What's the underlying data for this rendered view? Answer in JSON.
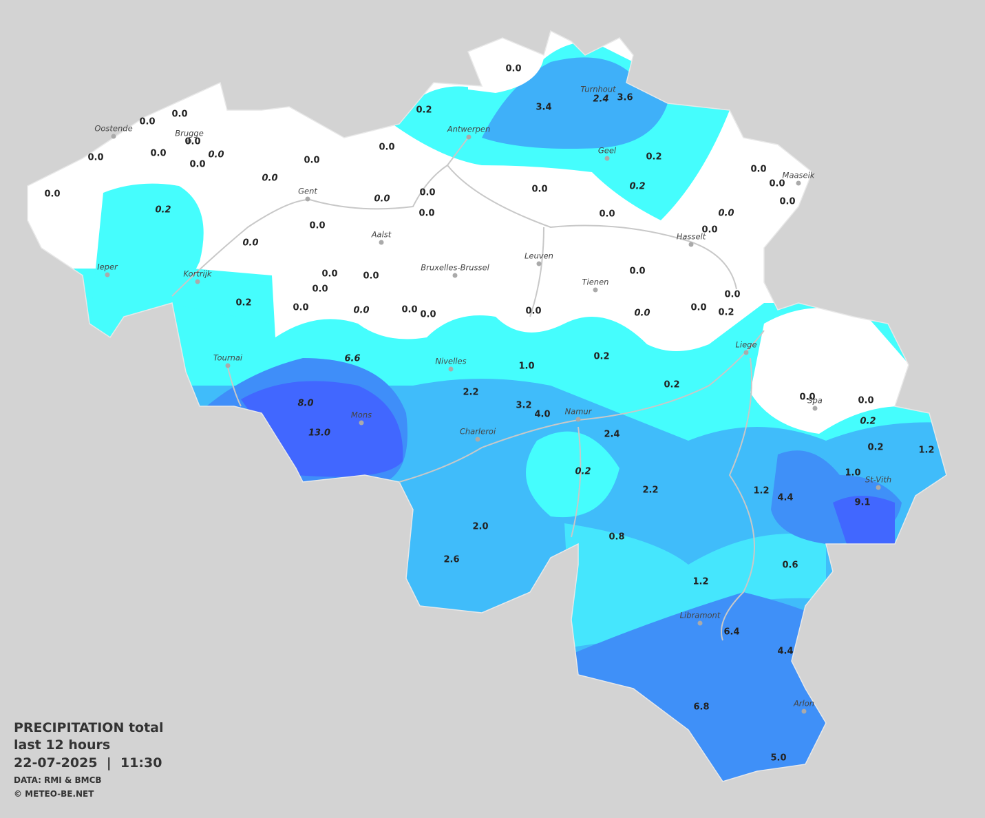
{
  "map": {
    "cities": [
      "Oostende",
      "Brugge",
      "Antwerpen",
      "Turnhout",
      "Geel",
      "Maaseik",
      "Gent",
      "Aalst",
      "Hasselt",
      "Leuven",
      "Bruxelles-Brussel",
      "Tienen",
      "Ieper",
      "Kortrijk",
      "Tournai",
      "Nivelles",
      "Liege",
      "Spa",
      "Mons",
      "Namur",
      "Charleroi",
      "St-Vith",
      "Libramont",
      "Arlon"
    ],
    "stations": [
      {
        "value": "0.0"
      },
      {
        "value": "0.2"
      },
      {
        "value": "3.4"
      },
      {
        "value": "2.4",
        "italic": true
      },
      {
        "value": "3.6"
      },
      {
        "value": "0.0"
      },
      {
        "value": "0.0"
      },
      {
        "value": "0.0"
      },
      {
        "value": "0.0"
      },
      {
        "value": "0.0"
      },
      {
        "value": "0.0",
        "italic": true
      },
      {
        "value": "0.0"
      },
      {
        "value": "0.0"
      },
      {
        "value": "0.0"
      },
      {
        "value": "0.2"
      },
      {
        "value": "0.0"
      },
      {
        "value": "0.0"
      },
      {
        "value": "0.0"
      },
      {
        "value": "0.0",
        "italic": true
      },
      {
        "value": "0.0"
      },
      {
        "value": "0.2",
        "italic": true
      },
      {
        "value": "0.0"
      },
      {
        "value": "0.0",
        "italic": true
      },
      {
        "value": "0.0"
      },
      {
        "value": "0.0"
      },
      {
        "value": "0.2",
        "italic": true
      },
      {
        "value": "0.0"
      },
      {
        "value": "0.0",
        "italic": true
      },
      {
        "value": "0.0"
      },
      {
        "value": "0.0"
      },
      {
        "value": "0.0",
        "italic": true
      },
      {
        "value": "0.0"
      },
      {
        "value": "0.0"
      },
      {
        "value": "0.0"
      },
      {
        "value": "0.0"
      },
      {
        "value": "0.2"
      },
      {
        "value": "0.0"
      },
      {
        "value": "0.0",
        "italic": true
      },
      {
        "value": "0.0"
      },
      {
        "value": "0.0"
      },
      {
        "value": "0.0"
      },
      {
        "value": "0.0",
        "italic": true
      },
      {
        "value": "0.0"
      },
      {
        "value": "0.0"
      },
      {
        "value": "0.2"
      },
      {
        "value": "6.6",
        "italic": true
      },
      {
        "value": "1.0"
      },
      {
        "value": "0.2"
      },
      {
        "value": "2.2"
      },
      {
        "value": "0.2"
      },
      {
        "value": "8.0",
        "italic": true
      },
      {
        "value": "3.2"
      },
      {
        "value": "4.0"
      },
      {
        "value": "0.0"
      },
      {
        "value": "0.0"
      },
      {
        "value": "0.2",
        "italic": true
      },
      {
        "value": "13.0",
        "italic": true
      },
      {
        "value": "2.4"
      },
      {
        "value": "0.2"
      },
      {
        "value": "1.2"
      },
      {
        "value": "0.2",
        "italic": true
      },
      {
        "value": "1.0"
      },
      {
        "value": "2.2"
      },
      {
        "value": "1.2"
      },
      {
        "value": "4.4"
      },
      {
        "value": "9.1"
      },
      {
        "value": "2.0"
      },
      {
        "value": "0.8"
      },
      {
        "value": "2.6"
      },
      {
        "value": "0.6"
      },
      {
        "value": "1.2"
      },
      {
        "value": "6.4"
      },
      {
        "value": "4.4"
      },
      {
        "value": "6.8"
      },
      {
        "value": "5.0"
      }
    ]
  },
  "legend": {
    "title": "PRECIPITATION total",
    "period": "last 12 hours",
    "datetime": "22-07-2025  |  11:30",
    "source": "DATA: RMI & BMCB",
    "copyright": "© METEO-BE.NET"
  }
}
